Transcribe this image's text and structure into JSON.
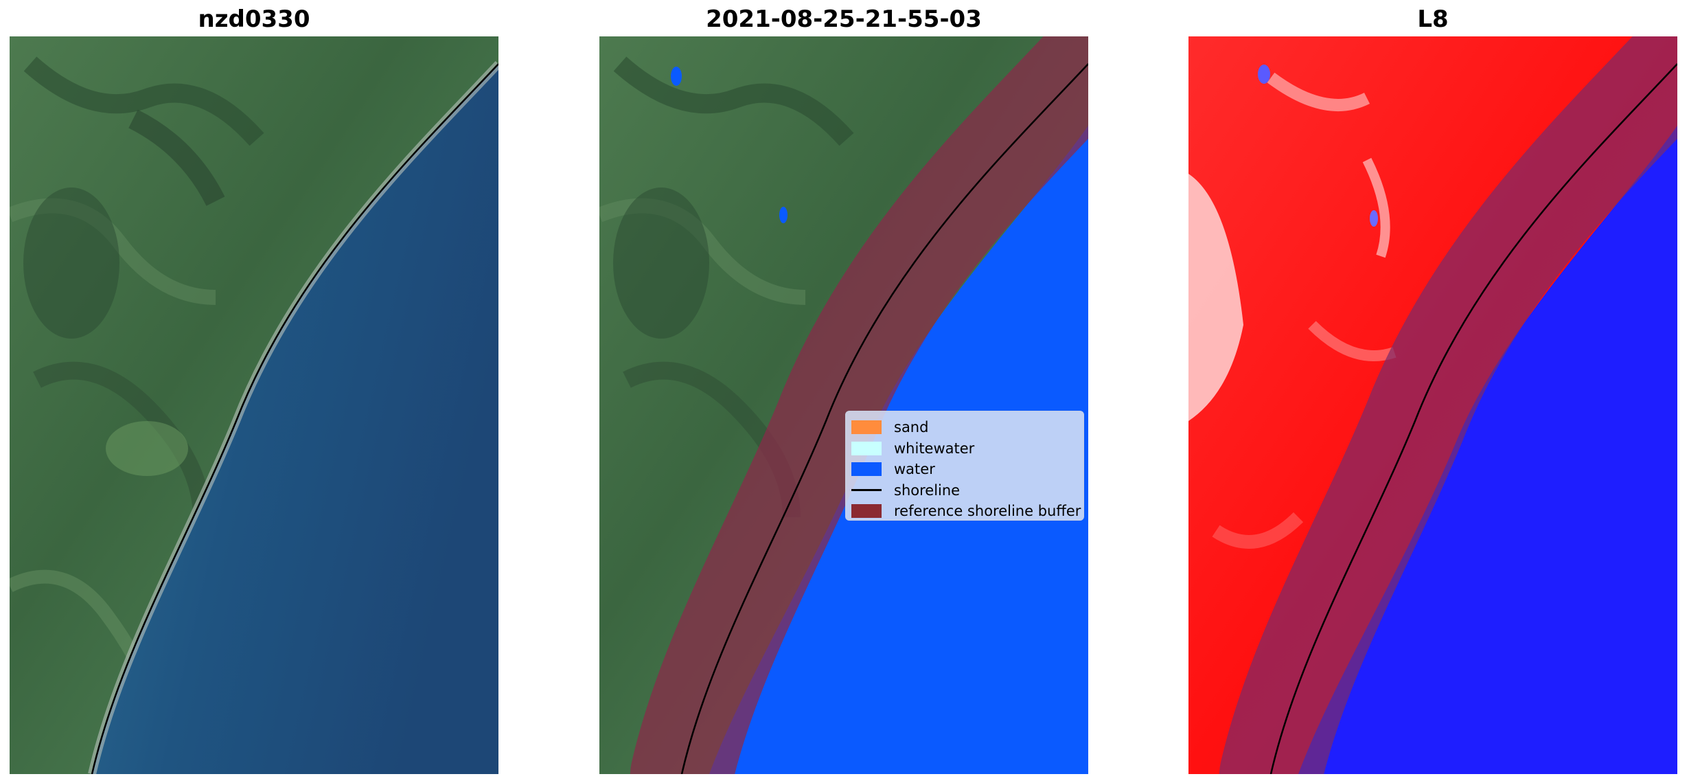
{
  "panels": [
    {
      "title": "nzd0330"
    },
    {
      "title": "2021-08-25-21-55-03"
    },
    {
      "title": "L8"
    }
  ],
  "legend": {
    "items": [
      {
        "label": "sand",
        "icon": "rect-swatch",
        "color": "#ff8c3c"
      },
      {
        "label": "whitewater",
        "icon": "rect-swatch",
        "color": "#c8ffff"
      },
      {
        "label": "water",
        "icon": "rect-swatch",
        "color": "#0a5aff"
      },
      {
        "label": "shoreline",
        "icon": "line-swatch",
        "color": "#000000"
      },
      {
        "label": "reference shoreline buffer",
        "icon": "rect-swatch",
        "color": "#8b2a32"
      }
    ]
  },
  "colors": {
    "land_green": "#3d6644",
    "ocean_blue": "#1f5080",
    "class_water": "#0a5aff",
    "buffer": "#8b2a32",
    "index_positive": "#ff1e1e",
    "index_negative": "#1e1eff"
  }
}
